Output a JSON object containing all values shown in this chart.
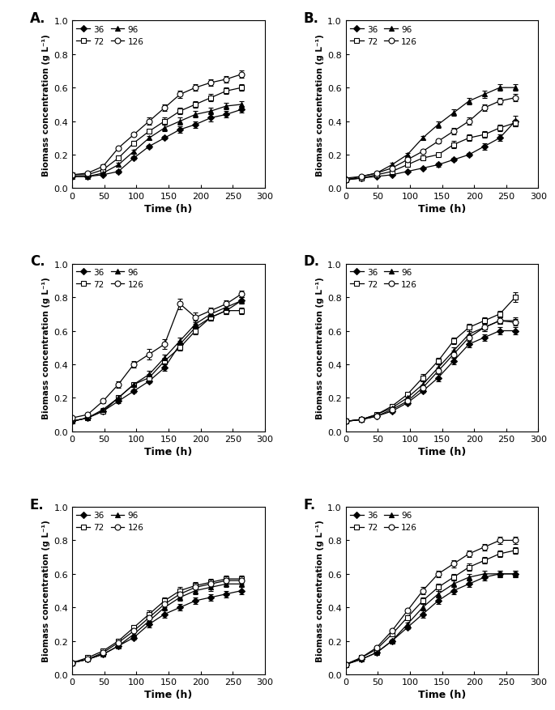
{
  "panels": {
    "A": {
      "label": "A.",
      "series": {
        "36": {
          "x": [
            0,
            24,
            48,
            72,
            96,
            120,
            144,
            168,
            192,
            216,
            240,
            264
          ],
          "y": [
            0.07,
            0.07,
            0.08,
            0.1,
            0.18,
            0.25,
            0.3,
            0.35,
            0.38,
            0.42,
            0.44,
            0.47
          ],
          "yerr": [
            0.005,
            0.005,
            0.005,
            0.01,
            0.01,
            0.01,
            0.01,
            0.02,
            0.02,
            0.02,
            0.02,
            0.02
          ]
        },
        "72": {
          "x": [
            0,
            24,
            48,
            72,
            96,
            120,
            144,
            168,
            192,
            216,
            240,
            264
          ],
          "y": [
            0.08,
            0.08,
            0.11,
            0.18,
            0.27,
            0.34,
            0.4,
            0.46,
            0.5,
            0.54,
            0.58,
            0.6
          ],
          "yerr": [
            0.005,
            0.005,
            0.01,
            0.01,
            0.01,
            0.01,
            0.02,
            0.02,
            0.02,
            0.02,
            0.02,
            0.02
          ]
        },
        "96": {
          "x": [
            0,
            24,
            48,
            72,
            96,
            120,
            144,
            168,
            192,
            216,
            240,
            264
          ],
          "y": [
            0.07,
            0.07,
            0.09,
            0.14,
            0.22,
            0.3,
            0.36,
            0.4,
            0.44,
            0.46,
            0.49,
            0.5
          ],
          "yerr": [
            0.005,
            0.005,
            0.005,
            0.01,
            0.01,
            0.01,
            0.02,
            0.02,
            0.02,
            0.02,
            0.02,
            0.02
          ]
        },
        "126": {
          "x": [
            0,
            24,
            48,
            72,
            96,
            120,
            144,
            168,
            192,
            216,
            240,
            264
          ],
          "y": [
            0.08,
            0.09,
            0.13,
            0.24,
            0.32,
            0.4,
            0.48,
            0.56,
            0.6,
            0.63,
            0.65,
            0.68
          ],
          "yerr": [
            0.005,
            0.005,
            0.01,
            0.01,
            0.01,
            0.02,
            0.02,
            0.02,
            0.02,
            0.02,
            0.02,
            0.02
          ]
        }
      }
    },
    "B": {
      "label": "B.",
      "series": {
        "36": {
          "x": [
            0,
            24,
            48,
            72,
            96,
            120,
            144,
            168,
            192,
            216,
            240,
            264
          ],
          "y": [
            0.05,
            0.06,
            0.07,
            0.08,
            0.1,
            0.12,
            0.14,
            0.17,
            0.2,
            0.25,
            0.3,
            0.4
          ],
          "yerr": [
            0.005,
            0.005,
            0.005,
            0.005,
            0.005,
            0.005,
            0.01,
            0.01,
            0.01,
            0.02,
            0.02,
            0.03
          ]
        },
        "72": {
          "x": [
            0,
            24,
            48,
            72,
            96,
            120,
            144,
            168,
            192,
            216,
            240,
            264
          ],
          "y": [
            0.05,
            0.06,
            0.08,
            0.1,
            0.14,
            0.18,
            0.2,
            0.26,
            0.3,
            0.32,
            0.36,
            0.39
          ],
          "yerr": [
            0.005,
            0.005,
            0.005,
            0.005,
            0.01,
            0.01,
            0.01,
            0.02,
            0.02,
            0.02,
            0.02,
            0.02
          ]
        },
        "96": {
          "x": [
            0,
            24,
            48,
            72,
            96,
            120,
            144,
            168,
            192,
            216,
            240,
            264
          ],
          "y": [
            0.06,
            0.07,
            0.09,
            0.14,
            0.2,
            0.3,
            0.38,
            0.45,
            0.52,
            0.56,
            0.6,
            0.6
          ],
          "yerr": [
            0.005,
            0.005,
            0.005,
            0.01,
            0.01,
            0.01,
            0.02,
            0.02,
            0.02,
            0.02,
            0.02,
            0.02
          ]
        },
        "126": {
          "x": [
            0,
            24,
            48,
            72,
            96,
            120,
            144,
            168,
            192,
            216,
            240,
            264
          ],
          "y": [
            0.05,
            0.07,
            0.09,
            0.12,
            0.17,
            0.22,
            0.28,
            0.34,
            0.4,
            0.48,
            0.52,
            0.54
          ],
          "yerr": [
            0.005,
            0.005,
            0.005,
            0.005,
            0.01,
            0.01,
            0.01,
            0.02,
            0.02,
            0.02,
            0.02,
            0.02
          ]
        }
      }
    },
    "C": {
      "label": "C.",
      "series": {
        "36": {
          "x": [
            0,
            24,
            48,
            72,
            96,
            120,
            144,
            168,
            192,
            216,
            240,
            264
          ],
          "y": [
            0.06,
            0.08,
            0.12,
            0.18,
            0.24,
            0.3,
            0.38,
            0.52,
            0.62,
            0.68,
            0.72,
            0.78
          ],
          "yerr": [
            0.005,
            0.005,
            0.01,
            0.01,
            0.01,
            0.01,
            0.02,
            0.02,
            0.02,
            0.02,
            0.02,
            0.02
          ]
        },
        "72": {
          "x": [
            0,
            24,
            48,
            72,
            96,
            120,
            144,
            168,
            192,
            216,
            240,
            264
          ],
          "y": [
            0.06,
            0.08,
            0.12,
            0.2,
            0.28,
            0.32,
            0.42,
            0.5,
            0.6,
            0.68,
            0.72,
            0.72
          ],
          "yerr": [
            0.005,
            0.005,
            0.01,
            0.01,
            0.01,
            0.02,
            0.02,
            0.02,
            0.02,
            0.02,
            0.02,
            0.02
          ]
        },
        "96": {
          "x": [
            0,
            24,
            48,
            72,
            96,
            120,
            144,
            168,
            192,
            216,
            240,
            264
          ],
          "y": [
            0.06,
            0.08,
            0.13,
            0.2,
            0.28,
            0.34,
            0.44,
            0.54,
            0.64,
            0.7,
            0.74,
            0.78
          ],
          "yerr": [
            0.005,
            0.005,
            0.01,
            0.01,
            0.01,
            0.02,
            0.02,
            0.02,
            0.02,
            0.02,
            0.02,
            0.02
          ]
        },
        "126": {
          "x": [
            0,
            24,
            48,
            72,
            96,
            120,
            144,
            168,
            192,
            216,
            240,
            264
          ],
          "y": [
            0.08,
            0.1,
            0.18,
            0.28,
            0.4,
            0.46,
            0.52,
            0.76,
            0.68,
            0.72,
            0.76,
            0.82
          ],
          "yerr": [
            0.005,
            0.01,
            0.01,
            0.02,
            0.02,
            0.03,
            0.03,
            0.03,
            0.03,
            0.02,
            0.02,
            0.02
          ]
        }
      }
    },
    "D": {
      "label": "D.",
      "series": {
        "36": {
          "x": [
            0,
            24,
            48,
            72,
            96,
            120,
            144,
            168,
            192,
            216,
            240,
            264
          ],
          "y": [
            0.06,
            0.07,
            0.09,
            0.12,
            0.17,
            0.24,
            0.32,
            0.42,
            0.52,
            0.56,
            0.6,
            0.6
          ],
          "yerr": [
            0.005,
            0.005,
            0.005,
            0.01,
            0.01,
            0.01,
            0.02,
            0.02,
            0.02,
            0.02,
            0.02,
            0.02
          ]
        },
        "72": {
          "x": [
            0,
            24,
            48,
            72,
            96,
            120,
            144,
            168,
            192,
            216,
            240,
            264
          ],
          "y": [
            0.06,
            0.07,
            0.1,
            0.15,
            0.22,
            0.32,
            0.42,
            0.54,
            0.62,
            0.66,
            0.7,
            0.8
          ],
          "yerr": [
            0.005,
            0.005,
            0.01,
            0.01,
            0.01,
            0.02,
            0.02,
            0.02,
            0.02,
            0.02,
            0.02,
            0.03
          ]
        },
        "96": {
          "x": [
            0,
            24,
            48,
            72,
            96,
            120,
            144,
            168,
            192,
            216,
            240,
            264
          ],
          "y": [
            0.06,
            0.07,
            0.1,
            0.14,
            0.2,
            0.28,
            0.38,
            0.48,
            0.58,
            0.62,
            0.66,
            0.66
          ],
          "yerr": [
            0.005,
            0.005,
            0.01,
            0.01,
            0.01,
            0.02,
            0.02,
            0.02,
            0.02,
            0.02,
            0.02,
            0.02
          ]
        },
        "126": {
          "x": [
            0,
            24,
            48,
            72,
            96,
            120,
            144,
            168,
            192,
            216,
            240,
            264
          ],
          "y": [
            0.06,
            0.07,
            0.09,
            0.13,
            0.18,
            0.26,
            0.36,
            0.46,
            0.56,
            0.62,
            0.66,
            0.65
          ],
          "yerr": [
            0.005,
            0.005,
            0.005,
            0.01,
            0.01,
            0.02,
            0.02,
            0.02,
            0.02,
            0.02,
            0.02,
            0.02
          ]
        }
      }
    },
    "E": {
      "label": "E.",
      "series": {
        "36": {
          "x": [
            0,
            24,
            48,
            72,
            96,
            120,
            144,
            168,
            192,
            216,
            240,
            264
          ],
          "y": [
            0.07,
            0.09,
            0.12,
            0.17,
            0.22,
            0.3,
            0.36,
            0.4,
            0.44,
            0.46,
            0.48,
            0.5
          ],
          "yerr": [
            0.005,
            0.005,
            0.01,
            0.01,
            0.01,
            0.02,
            0.02,
            0.02,
            0.02,
            0.02,
            0.02,
            0.02
          ]
        },
        "72": {
          "x": [
            0,
            24,
            48,
            72,
            96,
            120,
            144,
            168,
            192,
            216,
            240,
            264
          ],
          "y": [
            0.07,
            0.1,
            0.14,
            0.2,
            0.28,
            0.36,
            0.44,
            0.5,
            0.53,
            0.55,
            0.57,
            0.57
          ],
          "yerr": [
            0.005,
            0.005,
            0.01,
            0.01,
            0.01,
            0.02,
            0.02,
            0.02,
            0.02,
            0.02,
            0.02,
            0.02
          ]
        },
        "96": {
          "x": [
            0,
            24,
            48,
            72,
            96,
            120,
            144,
            168,
            192,
            216,
            240,
            264
          ],
          "y": [
            0.07,
            0.09,
            0.12,
            0.17,
            0.24,
            0.32,
            0.4,
            0.46,
            0.5,
            0.52,
            0.54,
            0.54
          ],
          "yerr": [
            0.005,
            0.005,
            0.01,
            0.01,
            0.01,
            0.02,
            0.02,
            0.02,
            0.02,
            0.02,
            0.02,
            0.02
          ]
        },
        "126": {
          "x": [
            0,
            24,
            48,
            72,
            96,
            120,
            144,
            168,
            192,
            216,
            240,
            264
          ],
          "y": [
            0.07,
            0.09,
            0.13,
            0.19,
            0.26,
            0.34,
            0.42,
            0.48,
            0.52,
            0.54,
            0.56,
            0.56
          ],
          "yerr": [
            0.005,
            0.005,
            0.01,
            0.01,
            0.01,
            0.02,
            0.02,
            0.02,
            0.02,
            0.02,
            0.02,
            0.02
          ]
        }
      }
    },
    "F": {
      "label": "F.",
      "series": {
        "36": {
          "x": [
            0,
            24,
            48,
            72,
            96,
            120,
            144,
            168,
            192,
            216,
            240,
            264
          ],
          "y": [
            0.06,
            0.09,
            0.13,
            0.2,
            0.28,
            0.36,
            0.44,
            0.5,
            0.54,
            0.58,
            0.6,
            0.6
          ],
          "yerr": [
            0.005,
            0.005,
            0.01,
            0.01,
            0.01,
            0.02,
            0.02,
            0.02,
            0.02,
            0.02,
            0.02,
            0.02
          ]
        },
        "72": {
          "x": [
            0,
            24,
            48,
            72,
            96,
            120,
            144,
            168,
            192,
            216,
            240,
            264
          ],
          "y": [
            0.06,
            0.1,
            0.15,
            0.24,
            0.34,
            0.44,
            0.52,
            0.58,
            0.64,
            0.68,
            0.72,
            0.74
          ],
          "yerr": [
            0.005,
            0.005,
            0.01,
            0.01,
            0.01,
            0.02,
            0.02,
            0.02,
            0.02,
            0.02,
            0.02,
            0.02
          ]
        },
        "96": {
          "x": [
            0,
            24,
            48,
            72,
            96,
            120,
            144,
            168,
            192,
            216,
            240,
            264
          ],
          "y": [
            0.06,
            0.09,
            0.13,
            0.2,
            0.3,
            0.4,
            0.48,
            0.54,
            0.58,
            0.6,
            0.6,
            0.6
          ],
          "yerr": [
            0.005,
            0.005,
            0.01,
            0.01,
            0.01,
            0.02,
            0.02,
            0.02,
            0.02,
            0.02,
            0.02,
            0.02
          ]
        },
        "126": {
          "x": [
            0,
            24,
            48,
            72,
            96,
            120,
            144,
            168,
            192,
            216,
            240,
            264
          ],
          "y": [
            0.06,
            0.1,
            0.16,
            0.26,
            0.38,
            0.5,
            0.6,
            0.66,
            0.72,
            0.76,
            0.8,
            0.8
          ],
          "yerr": [
            0.005,
            0.005,
            0.01,
            0.01,
            0.01,
            0.02,
            0.02,
            0.02,
            0.02,
            0.02,
            0.02,
            0.02
          ]
        }
      }
    }
  },
  "series_styles": {
    "36": {
      "marker": "D",
      "markerfacecolor": "black",
      "markeredgecolor": "black",
      "linestyle": "-",
      "markersize": 4.5
    },
    "72": {
      "marker": "s",
      "markerfacecolor": "white",
      "markeredgecolor": "black",
      "linestyle": "-",
      "markersize": 5
    },
    "96": {
      "marker": "^",
      "markerfacecolor": "black",
      "markeredgecolor": "black",
      "linestyle": "-",
      "markersize": 5
    },
    "126": {
      "marker": "o",
      "markerfacecolor": "white",
      "markeredgecolor": "black",
      "linestyle": "-",
      "markersize": 5
    }
  },
  "ylim": [
    0.0,
    1.0
  ],
  "yticks": [
    0.0,
    0.2,
    0.4,
    0.6,
    0.8,
    1.0
  ],
  "xticks": [
    0,
    50,
    100,
    150,
    200,
    250,
    300
  ],
  "xlim": [
    0,
    300
  ],
  "xlabel": "Time (h)",
  "ylabel": "Biomass concentration (g L⁻¹)",
  "series_keys": [
    "36",
    "72",
    "96",
    "126"
  ],
  "panel_order": [
    "A",
    "B",
    "C",
    "D",
    "E",
    "F"
  ]
}
